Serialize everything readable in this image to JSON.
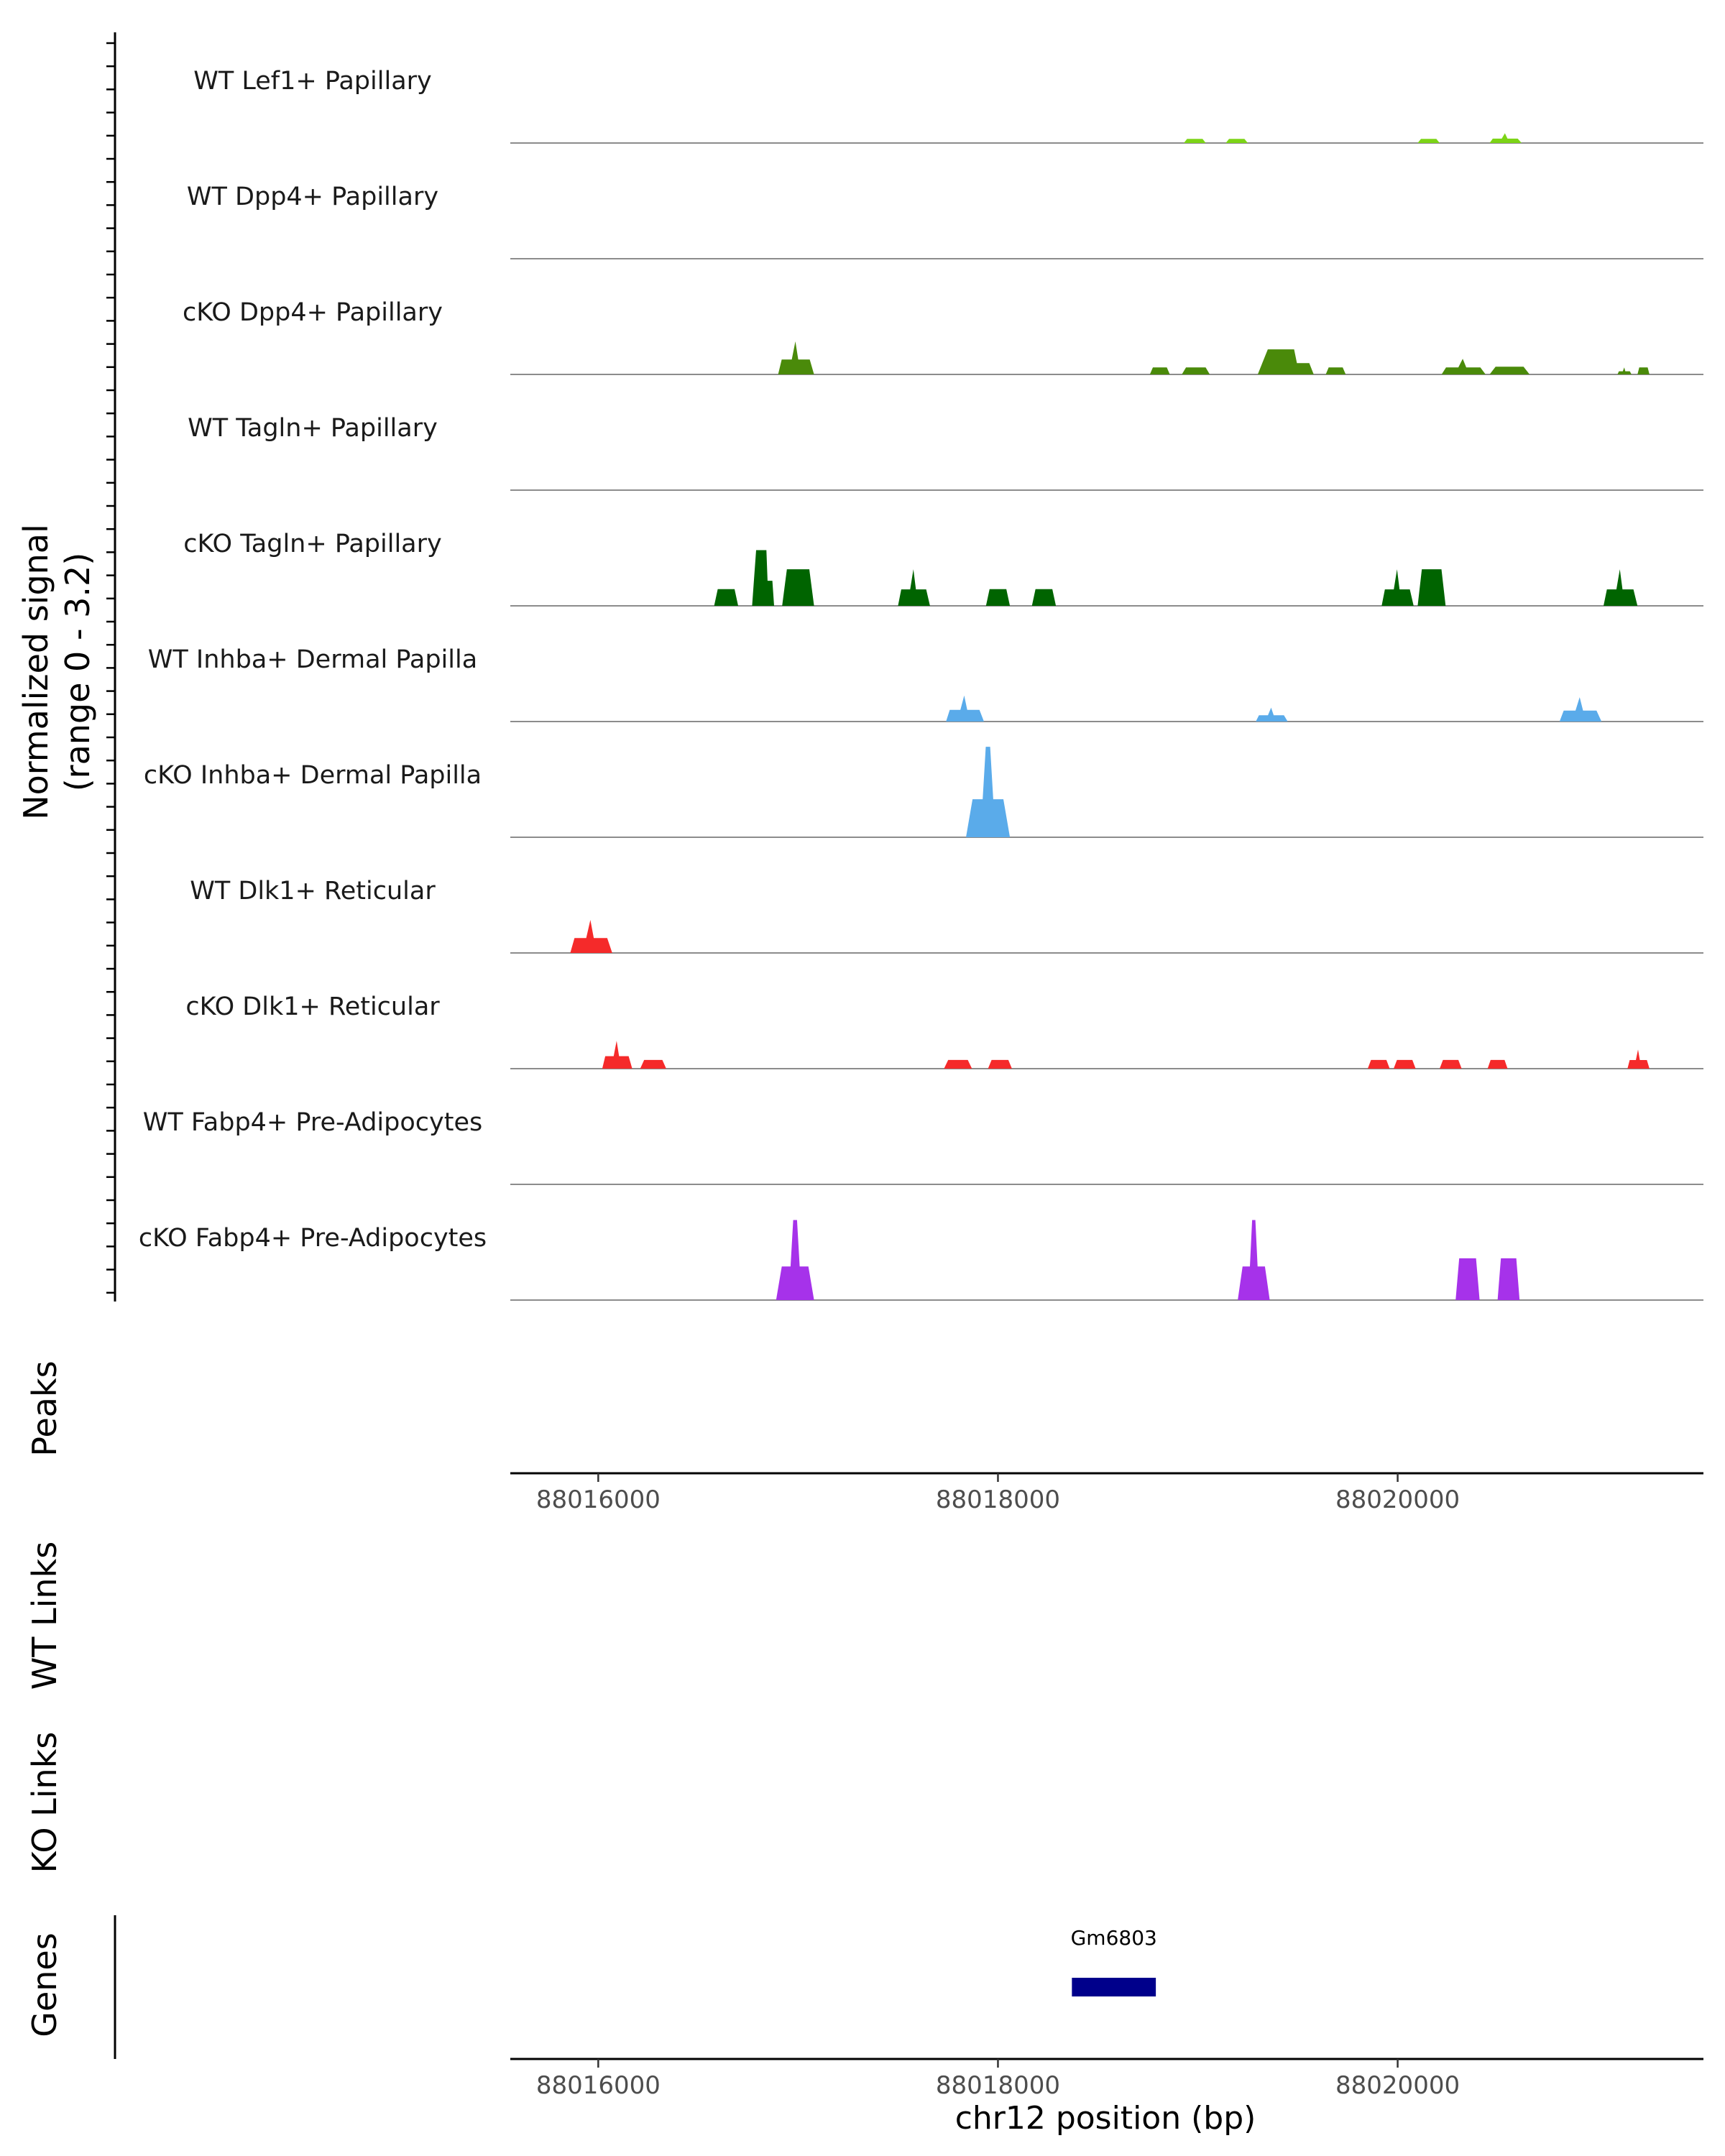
{
  "chart_data": {
    "type": "area",
    "title": "",
    "region": "chr12",
    "xlabel": "chr12 position (bp)",
    "xlim": [
      88015560,
      88021530
    ],
    "xticks": [
      88016000,
      88018000,
      88020000
    ],
    "xtick_labels": [
      "88016000",
      "88018000",
      "88020000"
    ],
    "ylabel": "Normalized signal",
    "ylabel_range": "(range 0 - 3.2)",
    "ylim": [
      0,
      3.2
    ],
    "tracks": [
      {
        "name": "WT Lef1+ Papillary",
        "color": "#7cd416",
        "peaks": [
          {
            "start": 88018930,
            "end": 88019040,
            "height": 0.12,
            "shape": "flat"
          },
          {
            "start": 88019140,
            "end": 88019250,
            "height": 0.12,
            "shape": "flat"
          },
          {
            "start": 88020100,
            "end": 88020210,
            "height": 0.12,
            "shape": "flat"
          },
          {
            "start": 88020460,
            "end": 88020620,
            "height": 0.28,
            "shape": "tri"
          }
        ]
      },
      {
        "name": "WT Dpp4+ Papillary",
        "color": "#5a8d0a",
        "peaks": []
      },
      {
        "name": "cKO Dpp4+ Papillary",
        "color": "#4a8a0a",
        "peaks": [
          {
            "start": 88016900,
            "end": 88017080,
            "height": 0.95,
            "shape": "tri"
          },
          {
            "start": 88018760,
            "end": 88018860,
            "height": 0.2,
            "shape": "flat"
          },
          {
            "start": 88018920,
            "end": 88019060,
            "height": 0.2,
            "shape": "flat"
          },
          {
            "start": 88019300,
            "end": 88019580,
            "height": 0.72,
            "shape": "block"
          },
          {
            "start": 88019640,
            "end": 88019740,
            "height": 0.2,
            "shape": "flat"
          },
          {
            "start": 88020220,
            "end": 88020440,
            "height": 0.45,
            "shape": "tri"
          },
          {
            "start": 88020460,
            "end": 88020660,
            "height": 0.22,
            "shape": "flat"
          },
          {
            "start": 88021100,
            "end": 88021170,
            "height": 0.2,
            "shape": "tri"
          },
          {
            "start": 88021200,
            "end": 88021260,
            "height": 0.2,
            "shape": "flat"
          }
        ]
      },
      {
        "name": "WT Tagln+ Papillary",
        "color": "#006400",
        "peaks": []
      },
      {
        "name": "cKO Tagln+ Papillary",
        "color": "#006400",
        "peaks": [
          {
            "start": 88016580,
            "end": 88016700,
            "height": 0.48,
            "shape": "flat"
          },
          {
            "start": 88016770,
            "end": 88016880,
            "height": 1.6,
            "shape": "block"
          },
          {
            "start": 88016920,
            "end": 88017080,
            "height": 1.05,
            "shape": "flat"
          },
          {
            "start": 88017500,
            "end": 88017660,
            "height": 1.05,
            "shape": "tri"
          },
          {
            "start": 88017940,
            "end": 88018060,
            "height": 0.48,
            "shape": "flat"
          },
          {
            "start": 88018170,
            "end": 88018290,
            "height": 0.48,
            "shape": "flat"
          },
          {
            "start": 88019920,
            "end": 88020080,
            "height": 1.05,
            "shape": "tri"
          },
          {
            "start": 88020100,
            "end": 88020240,
            "height": 1.05,
            "shape": "flat"
          },
          {
            "start": 88021030,
            "end": 88021200,
            "height": 1.05,
            "shape": "tri"
          }
        ]
      },
      {
        "name": "WT Inhba+ Dermal Papilla",
        "color": "#5aabea",
        "peaks": [
          {
            "start": 88017740,
            "end": 88017930,
            "height": 0.75,
            "shape": "tri"
          },
          {
            "start": 88019290,
            "end": 88019450,
            "height": 0.4,
            "shape": "tri"
          },
          {
            "start": 88020810,
            "end": 88021020,
            "height": 0.7,
            "shape": "tri"
          }
        ]
      },
      {
        "name": "cKO Inhba+ Dermal Papilla",
        "color": "#5aabea",
        "peaks": [
          {
            "start": 88017840,
            "end": 88018060,
            "height": 2.6,
            "shape": "spike"
          }
        ]
      },
      {
        "name": "WT Dlk1+ Reticular",
        "color": "#f52a2a",
        "peaks": [
          {
            "start": 88015860,
            "end": 88016070,
            "height": 0.95,
            "shape": "tri"
          }
        ]
      },
      {
        "name": "cKO Dlk1+ Reticular",
        "color": "#f52a2a",
        "peaks": [
          {
            "start": 88016020,
            "end": 88016170,
            "height": 0.8,
            "shape": "tri"
          },
          {
            "start": 88016210,
            "end": 88016340,
            "height": 0.25,
            "shape": "flat"
          },
          {
            "start": 88017730,
            "end": 88017870,
            "height": 0.25,
            "shape": "flat"
          },
          {
            "start": 88017950,
            "end": 88018070,
            "height": 0.25,
            "shape": "flat"
          },
          {
            "start": 88019850,
            "end": 88019960,
            "height": 0.25,
            "shape": "flat"
          },
          {
            "start": 88019980,
            "end": 88020090,
            "height": 0.25,
            "shape": "flat"
          },
          {
            "start": 88020210,
            "end": 88020320,
            "height": 0.25,
            "shape": "flat"
          },
          {
            "start": 88020450,
            "end": 88020550,
            "height": 0.25,
            "shape": "flat"
          },
          {
            "start": 88021150,
            "end": 88021260,
            "height": 0.55,
            "shape": "tri"
          }
        ]
      },
      {
        "name": "WT Fabp4+ Pre-Adipocytes",
        "color": "#a632ea",
        "peaks": []
      },
      {
        "name": "cKO Fabp4+ Pre-Adipocytes",
        "color": "#a632ea",
        "peaks": [
          {
            "start": 88016890,
            "end": 88017080,
            "height": 2.3,
            "shape": "spike"
          },
          {
            "start": 88019200,
            "end": 88019360,
            "height": 2.3,
            "shape": "spike"
          },
          {
            "start": 88020290,
            "end": 88020410,
            "height": 1.2,
            "shape": "flat"
          },
          {
            "start": 88020500,
            "end": 88020610,
            "height": 1.2,
            "shape": "flat"
          }
        ]
      }
    ],
    "panels": [
      "Peaks",
      "WT Links",
      "KO Links",
      "Genes"
    ],
    "genes": [
      {
        "name": "Gm6803",
        "start": 88018370,
        "end": 88018790,
        "color": "#00008b"
      }
    ]
  }
}
